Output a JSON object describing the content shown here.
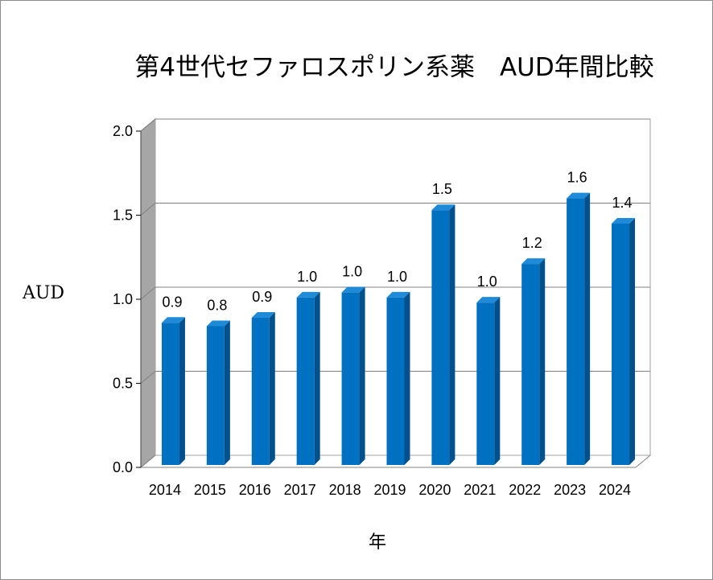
{
  "chart_data": {
    "type": "bar",
    "title": "第4世代セファロスポリン系薬　AUD年間比較",
    "xlabel": "年",
    "ylabel": "AUD",
    "categories": [
      "2014",
      "2015",
      "2016",
      "2017",
      "2018",
      "2019",
      "2020",
      "2021",
      "2022",
      "2023",
      "2024"
    ],
    "values": [
      0.86,
      0.84,
      0.89,
      1.01,
      1.04,
      1.01,
      1.53,
      0.98,
      1.21,
      1.6,
      1.45
    ],
    "data_labels": [
      "0.9",
      "0.8",
      "0.9",
      "1.0",
      "1.0",
      "1.0",
      "1.5",
      "1.0",
      "1.2",
      "1.6",
      "1.4"
    ],
    "ylim": [
      0,
      2.0
    ],
    "yticks": [
      "0.0",
      "0.5",
      "1.0",
      "1.5",
      "2.0"
    ],
    "grid": true,
    "style": "3d-column",
    "colors": {
      "bar": "#0070c0",
      "bar_side": "#00508c",
      "bar_top": "#1e8ad8",
      "wall": "#a6a6a6",
      "grid": "#808080"
    }
  }
}
